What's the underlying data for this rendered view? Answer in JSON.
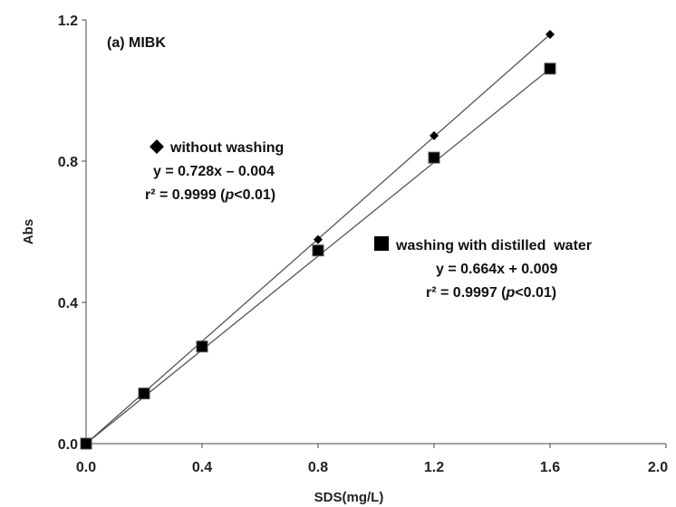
{
  "chart_data": {
    "type": "scatter",
    "xlabel": "SDS(mg/L)",
    "ylabel": "Abs",
    "xlim": [
      0,
      2.0
    ],
    "ylim": [
      0,
      1.2
    ],
    "xticks": [
      "0.0",
      "0.4",
      "0.8",
      "1.2",
      "1.6",
      "2.0"
    ],
    "yticks": [
      "0.0",
      "0.4",
      "0.8",
      "1.2"
    ],
    "panel_label": "(a) MIBK",
    "trendline": true,
    "grid": false,
    "series": [
      {
        "name": "without washing",
        "marker": "diamond",
        "color": "#000000",
        "x": [
          0,
          0.2,
          0.4,
          0.8,
          1.2,
          1.6
        ],
        "y": [
          0.0,
          0.145,
          0.28,
          0.578,
          0.872,
          1.159
        ],
        "fit": {
          "slope": 0.728,
          "intercept": -0.004
        },
        "equation": "y = 0.728x – 0.004",
        "r2_text": "r² = 0.9999 (",
        "p_symbol": "p",
        "p_text": "<0.01)"
      },
      {
        "name": "washing with distilled  water",
        "marker": "square",
        "color": "#000000",
        "x": [
          0,
          0.2,
          0.4,
          0.8,
          1.2,
          1.6
        ],
        "y": [
          0.0,
          0.142,
          0.275,
          0.547,
          0.81,
          1.062
        ],
        "fit": {
          "slope": 0.664,
          "intercept": 0.009
        },
        "equation": "y = 0.664x + 0.009",
        "r2_text": "r² = 0.9997 (",
        "p_symbol": "p",
        "p_text": "<0.01)"
      }
    ]
  }
}
